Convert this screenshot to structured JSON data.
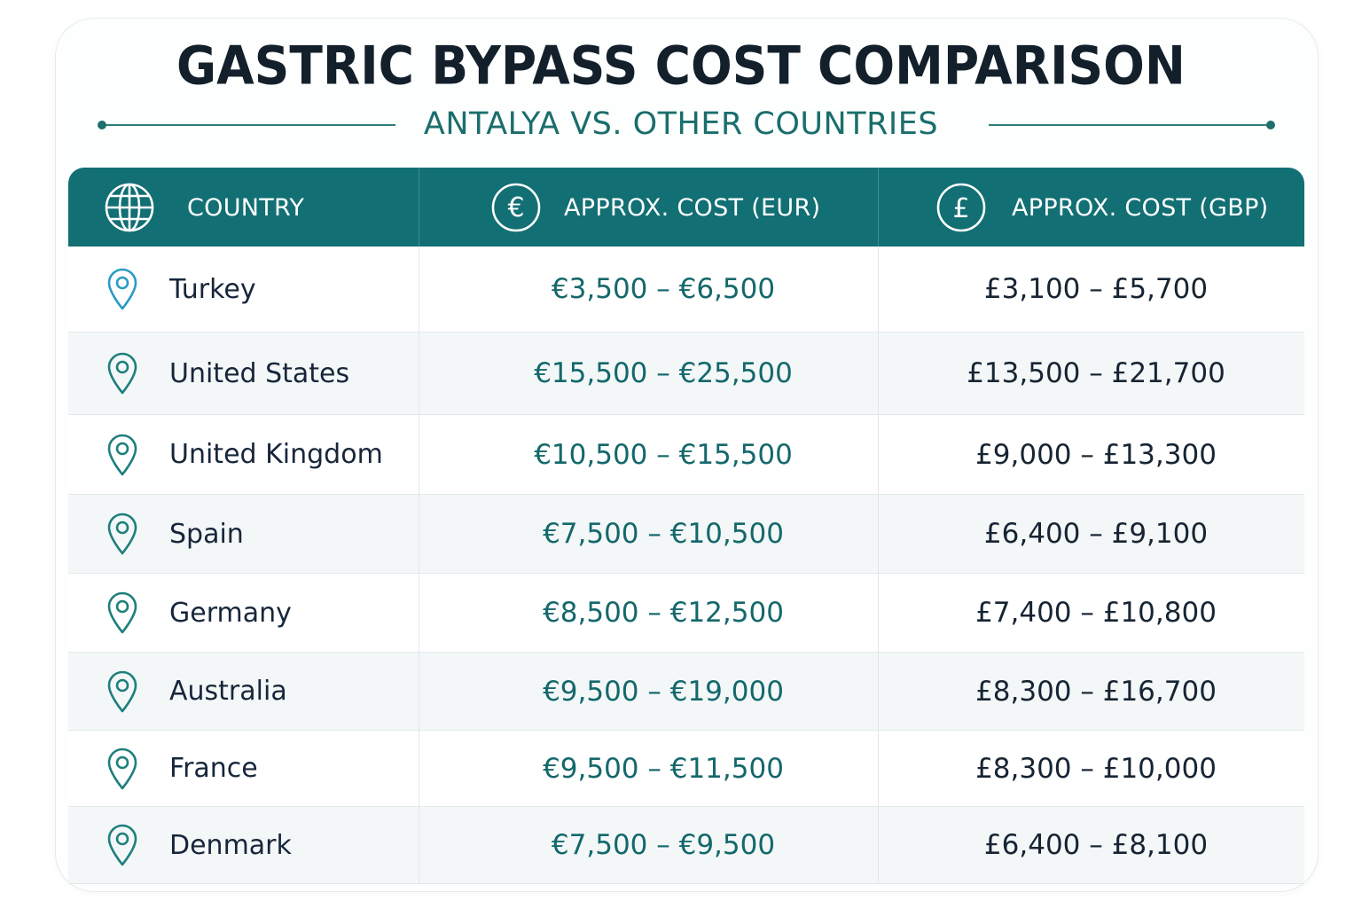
{
  "title": "GASTRIC BYPASS COST COMPARISON",
  "subtitle": "ANTALYA VS. OTHER COUNTRIES",
  "colors": {
    "header_bg": "#126f73",
    "accent": "#14686b",
    "title": "#13202b"
  },
  "table": {
    "headers": [
      {
        "label": "COUNTRY",
        "icon": "globe-icon"
      },
      {
        "label": "APPROX. COST (EUR)",
        "icon": "euro-icon"
      },
      {
        "label": "APPROX. COST (GBP)",
        "icon": "pound-icon"
      }
    ],
    "row_icon": "location-pin-icon",
    "rows": [
      {
        "country": "Turkey",
        "eur": "€3,500 – €6,500",
        "gbp": "£3,100 – £5,700"
      },
      {
        "country": "United States",
        "eur": "€15,500 – €25,500",
        "gbp": "£13,500 – £21,700"
      },
      {
        "country": "United Kingdom",
        "eur": "€10,500 – €15,500",
        "gbp": "£9,000 – £13,300"
      },
      {
        "country": "Spain",
        "eur": "€7,500 – €10,500",
        "gbp": "£6,400 – £9,100"
      },
      {
        "country": "Germany",
        "eur": "€8,500 – €12,500",
        "gbp": "£7,400 – £10,800"
      },
      {
        "country": "Australia",
        "eur": "€9,500 – €19,000",
        "gbp": "£8,300 – £16,700"
      },
      {
        "country": "France",
        "eur": "€9,500 – €11,500",
        "gbp": "£8,300 – £10,000"
      },
      {
        "country": "Denmark",
        "eur": "€7,500 – €9,500",
        "gbp": "£6,400 – £8,100"
      }
    ]
  }
}
